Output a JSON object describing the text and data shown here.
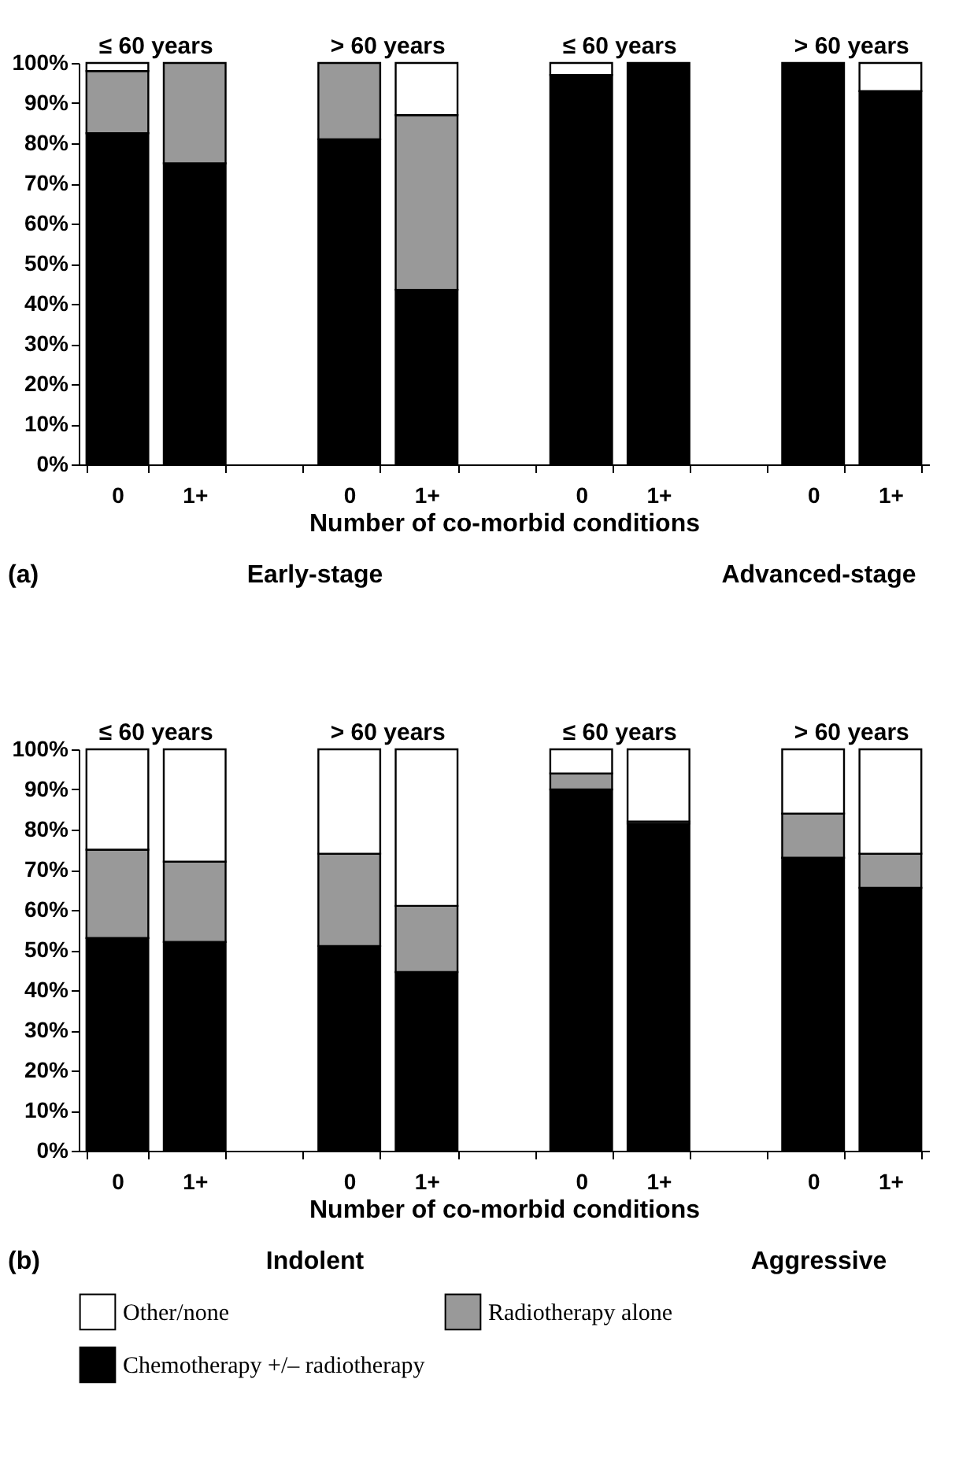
{
  "chart_data": [
    {
      "type": "bar",
      "stacked": true,
      "xlabel": "Number of co-morbid conditions",
      "categories": [
        "0",
        "1+",
        null,
        "0",
        "1+",
        null,
        "0",
        "1+",
        null,
        "0",
        "1+"
      ],
      "series": [
        {
          "name": "Chemotherapy +/– radiotherapy",
          "color": "#000000",
          "values": [
            82.5,
            75,
            null,
            81,
            43.5,
            null,
            97,
            100,
            null,
            100,
            93
          ]
        },
        {
          "name": "Radiotherapy alone",
          "color": "#999999",
          "values": [
            15.5,
            25,
            null,
            19,
            43.5,
            null,
            0,
            0,
            null,
            0,
            0
          ]
        },
        {
          "name": "Other/none",
          "color": "#ffffff",
          "values": [
            2,
            0,
            null,
            0,
            13,
            null,
            3,
            0,
            null,
            0,
            7
          ]
        }
      ],
      "ylim": [
        0,
        100
      ],
      "yticks": [
        {
          "value": 0,
          "label": "0%"
        },
        {
          "value": 10,
          "label": "10%"
        },
        {
          "value": 20,
          "label": "20%"
        },
        {
          "value": 30,
          "label": "30%"
        },
        {
          "value": 40,
          "label": "40%"
        },
        {
          "value": 50,
          "label": "50%"
        },
        {
          "value": 60,
          "label": "60%"
        },
        {
          "value": 70,
          "label": "70%"
        },
        {
          "value": 80,
          "label": "80%"
        },
        {
          "value": 90,
          "label": "90%"
        },
        {
          "value": 100,
          "label": "100%"
        }
      ],
      "annotations": [
        "≤ 60 years",
        "> 60 years",
        "≤ 60 years",
        "> 60 years",
        "(a)",
        "Early-stage",
        "Advanced-stage"
      ],
      "legend": "bottom",
      "grid": false
    },
    {
      "type": "bar",
      "stacked": true,
      "xlabel": "Number of co-morbid conditions",
      "categories": [
        "0",
        "1+",
        null,
        "0",
        "1+",
        null,
        "0",
        "1+",
        null,
        "0",
        "1+"
      ],
      "series": [
        {
          "color": "#000000",
          "values": [
            53,
            52,
            null,
            51,
            44.5,
            null,
            90,
            81.5,
            null,
            73,
            65.5
          ]
        },
        {
          "color": "#999999",
          "values": [
            22,
            20,
            null,
            23,
            16.5,
            null,
            4,
            0.5,
            null,
            11,
            8.5
          ]
        },
        {
          "color": "#ffffff",
          "values": [
            25,
            28,
            null,
            26,
            39,
            null,
            6,
            18,
            null,
            16,
            26
          ]
        }
      ],
      "ylim": [
        0,
        100
      ],
      "yticks": [
        {
          "value": 0,
          "label": "0%"
        },
        {
          "value": 10,
          "label": "10%"
        },
        {
          "value": 20,
          "label": "20%"
        },
        {
          "value": 30,
          "label": "30%"
        },
        {
          "value": 40,
          "label": "40%"
        },
        {
          "value": 50,
          "label": "50%"
        },
        {
          "value": 60,
          "label": "60%"
        },
        {
          "value": 70,
          "label": "70%"
        },
        {
          "value": 80,
          "label": "80%"
        },
        {
          "value": 90,
          "label": "90%"
        },
        {
          "value": 100,
          "label": "100%"
        }
      ],
      "annotations": [
        "≤ 60 years",
        "> 60 years",
        "≤ 60 years",
        "> 60 years",
        "(b)",
        "Indolent",
        "Aggressive"
      ],
      "grid": false
    }
  ]
}
